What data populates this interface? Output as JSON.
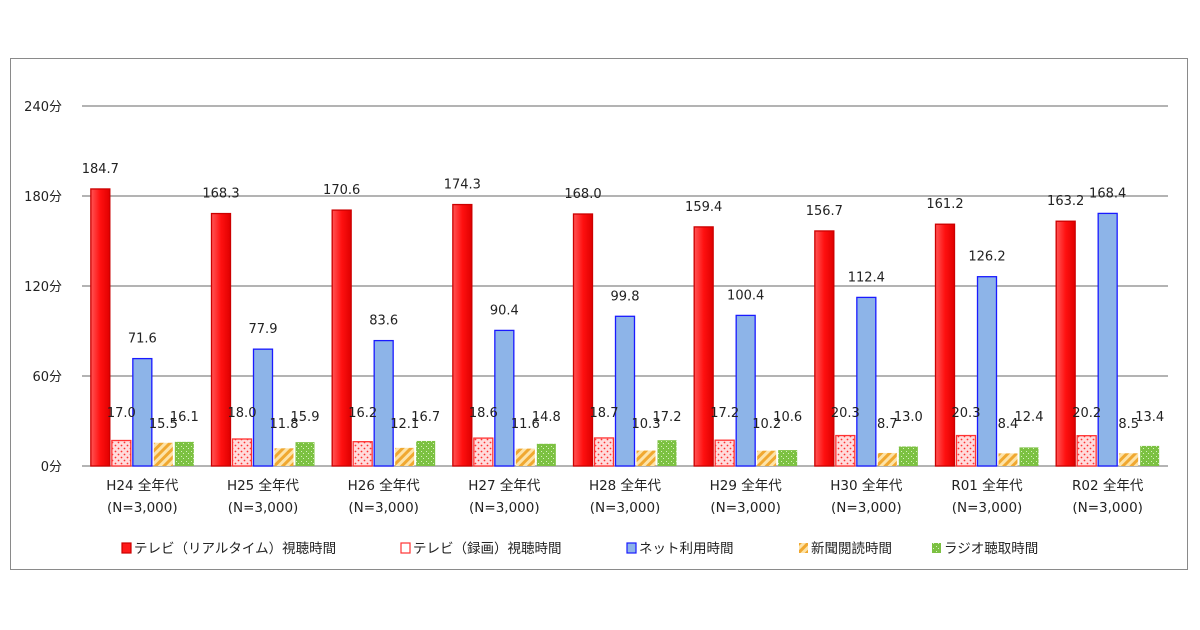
{
  "chart_data": {
    "type": "bar",
    "yunit": "分",
    "ylim": [
      0,
      240
    ],
    "yticks": [
      0,
      60,
      120,
      180,
      240
    ],
    "ytick_labels": [
      "0分",
      "60分",
      "120分",
      "180分",
      "240分"
    ],
    "grid": true,
    "legend_position": "bottom",
    "categories": [
      [
        "H24 全年代",
        "(N=3,000)"
      ],
      [
        "H25 全年代",
        "(N=3,000)"
      ],
      [
        "H26 全年代",
        "(N=3,000)"
      ],
      [
        "H27 全年代",
        "(N=3,000)"
      ],
      [
        "H28 全年代",
        "(N=3,000)"
      ],
      [
        "H29 全年代",
        "(N=3,000)"
      ],
      [
        "H30 全年代",
        "(N=3,000)"
      ],
      [
        "R01 全年代",
        "(N=3,000)"
      ],
      [
        "R02 全年代",
        "(N=3,000)"
      ]
    ],
    "series": [
      {
        "name": "テレビ（リアルタイム）視聴時間",
        "color": "#ff1a1a",
        "pattern": "solid",
        "values": [
          184.7,
          168.3,
          170.6,
          174.3,
          168.0,
          159.4,
          156.7,
          161.2,
          163.2
        ],
        "labels": [
          "184.7",
          "168.3",
          "170.6",
          "174.3",
          "168.0",
          "159.4",
          "156.7",
          "161.2",
          "163.2"
        ]
      },
      {
        "name": "テレビ（録画）視聴時間",
        "color": "#ff3333",
        "pattern": "dots",
        "values": [
          17.0,
          18.0,
          16.2,
          18.6,
          18.7,
          17.2,
          20.3,
          20.3,
          20.2
        ],
        "labels": [
          "17.0",
          "18.0",
          "16.2",
          "18.6",
          "18.7",
          "17.2",
          "20.3",
          "20.3",
          "20.2"
        ]
      },
      {
        "name": "ネット利用時間",
        "color": "#8db4e8",
        "pattern": "solid-blue",
        "values": [
          71.6,
          77.9,
          83.6,
          90.4,
          99.8,
          100.4,
          112.4,
          126.2,
          168.4
        ],
        "labels": [
          "71.6",
          "77.9",
          "83.6",
          "90.4",
          "99.8",
          "100.4",
          "112.4",
          "126.2",
          "168.4"
        ]
      },
      {
        "name": "新聞閲読時間",
        "color": "#f5b94a",
        "pattern": "stripes",
        "values": [
          15.5,
          11.8,
          12.1,
          11.6,
          10.3,
          10.2,
          8.7,
          8.4,
          8.5
        ],
        "labels": [
          "15.5",
          "11.8",
          "12.1",
          "11.6",
          "10.3",
          "10.2",
          "8.7",
          "8.4",
          "8.5"
        ]
      },
      {
        "name": "ラジオ聴取時間",
        "color": "#7cc142",
        "pattern": "speckle",
        "values": [
          16.1,
          15.9,
          16.7,
          14.8,
          17.2,
          10.6,
          13.0,
          12.4,
          13.4
        ],
        "labels": [
          "16.1",
          "15.9",
          "16.7",
          "14.8",
          "17.2",
          "10.6",
          "13.0",
          "12.4",
          "13.4"
        ]
      }
    ]
  }
}
